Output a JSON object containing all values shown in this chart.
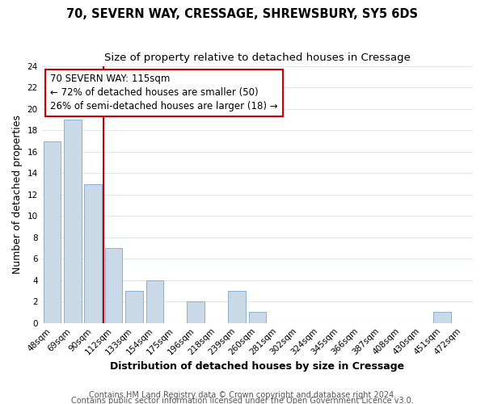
{
  "title": "70, SEVERN WAY, CRESSAGE, SHREWSBURY, SY5 6DS",
  "subtitle": "Size of property relative to detached houses in Cressage",
  "xlabel": "Distribution of detached houses by size in Cressage",
  "ylabel": "Number of detached properties",
  "bin_labels": [
    "48sqm",
    "69sqm",
    "90sqm",
    "112sqm",
    "133sqm",
    "154sqm",
    "175sqm",
    "196sqm",
    "218sqm",
    "239sqm",
    "260sqm",
    "281sqm",
    "302sqm",
    "324sqm",
    "345sqm",
    "366sqm",
    "387sqm",
    "408sqm",
    "430sqm",
    "451sqm",
    "472sqm"
  ],
  "bar_values": [
    17,
    19,
    13,
    7,
    3,
    4,
    0,
    2,
    0,
    3,
    1,
    0,
    0,
    0,
    0,
    0,
    0,
    0,
    0,
    1,
    0
  ],
  "bar_color": "#c9d9e8",
  "bar_edge_color": "#7fa8c8",
  "vline_x_index": 2.5,
  "vline_color": "#cc0000",
  "annotation_line1": "70 SEVERN WAY: 115sqm",
  "annotation_line2": "← 72% of detached houses are smaller (50)",
  "annotation_line3": "26% of semi-detached houses are larger (18) →",
  "annotation_box_color": "#ffffff",
  "annotation_box_edge": "#cc0000",
  "ylim": [
    0,
    24
  ],
  "yticks": [
    0,
    2,
    4,
    6,
    8,
    10,
    12,
    14,
    16,
    18,
    20,
    22,
    24
  ],
  "footer1": "Contains HM Land Registry data © Crown copyright and database right 2024.",
  "footer2": "Contains public sector information licensed under the Open Government Licence v3.0.",
  "grid_color": "#dce8f0",
  "title_fontsize": 10.5,
  "subtitle_fontsize": 9.5,
  "axis_label_fontsize": 9,
  "tick_fontsize": 7.5,
  "footer_fontsize": 7,
  "annotation_fontsize": 8.5
}
